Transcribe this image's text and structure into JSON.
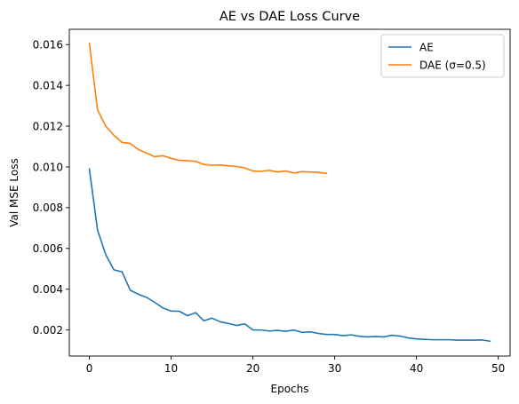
{
  "chart_data": {
    "type": "line",
    "title": "AE vs DAE Loss Curve",
    "xlabel": "Epochs",
    "ylabel": "Val MSE Loss",
    "xlim": [
      -2.45,
      51.45
    ],
    "ylim": [
      0.00072,
      0.01675
    ],
    "xticks": [
      0,
      10,
      20,
      30,
      40,
      50
    ],
    "yticks": [
      0.002,
      0.004,
      0.006,
      0.008,
      0.01,
      0.012,
      0.014,
      0.016
    ],
    "ytick_labels": [
      "0.002",
      "0.004",
      "0.006",
      "0.008",
      "0.010",
      "0.012",
      "0.014",
      "0.016"
    ],
    "grid": false,
    "legend_position": "top-right",
    "series": [
      {
        "name": "AE",
        "color": "#1f77b4",
        "x": [
          0,
          1,
          2,
          3,
          4,
          5,
          6,
          7,
          8,
          9,
          10,
          11,
          12,
          13,
          14,
          15,
          16,
          17,
          18,
          19,
          20,
          21,
          22,
          23,
          24,
          25,
          26,
          27,
          28,
          29,
          30,
          31,
          32,
          33,
          34,
          35,
          36,
          37,
          38,
          39,
          40,
          41,
          42,
          43,
          44,
          45,
          46,
          47,
          48,
          49
        ],
        "values": [
          0.0099,
          0.0069,
          0.0057,
          0.00495,
          0.00485,
          0.00395,
          0.00375,
          0.0036,
          0.00335,
          0.00308,
          0.00293,
          0.00292,
          0.0027,
          0.00285,
          0.00245,
          0.00258,
          0.0024,
          0.00232,
          0.00222,
          0.0023,
          0.002,
          0.002,
          0.00195,
          0.00198,
          0.00193,
          0.002,
          0.00188,
          0.00191,
          0.00183,
          0.00178,
          0.00178,
          0.00172,
          0.00176,
          0.00169,
          0.00166,
          0.00168,
          0.00166,
          0.00174,
          0.0017,
          0.00161,
          0.00156,
          0.00154,
          0.00152,
          0.00152,
          0.00152,
          0.0015,
          0.0015,
          0.0015,
          0.00151,
          0.00145
        ]
      },
      {
        "name": "DAE (σ=0.5)",
        "color": "#ff7f0e",
        "x": [
          0,
          1,
          2,
          3,
          4,
          5,
          6,
          7,
          8,
          9,
          10,
          11,
          12,
          13,
          14,
          15,
          16,
          17,
          18,
          19,
          20,
          21,
          22,
          23,
          24,
          25,
          26,
          27,
          28,
          29
        ],
        "values": [
          0.01605,
          0.0128,
          0.012,
          0.01155,
          0.0112,
          0.01115,
          0.01085,
          0.01068,
          0.0105,
          0.01055,
          0.01042,
          0.01032,
          0.0103,
          0.01027,
          0.01012,
          0.01008,
          0.0101,
          0.01005,
          0.01002,
          0.00995,
          0.0098,
          0.00978,
          0.00983,
          0.00975,
          0.0098,
          0.0097,
          0.00977,
          0.00975,
          0.00973,
          0.00968
        ]
      }
    ]
  }
}
